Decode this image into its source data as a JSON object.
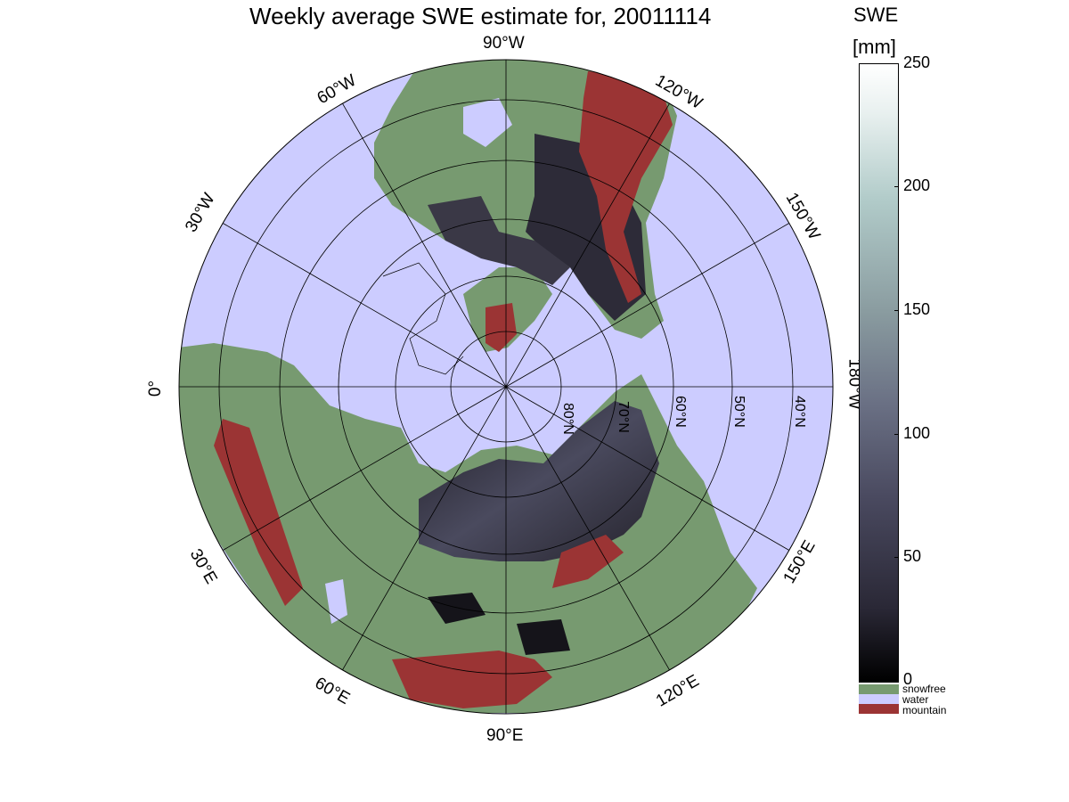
{
  "title": "Weekly average SWE estimate for, 20011114",
  "colorbar": {
    "title_line1": "SWE",
    "title_line2": "[mm]",
    "ticks": [
      "250",
      "200",
      "150",
      "100",
      "50",
      "0"
    ]
  },
  "legend": [
    {
      "label": "snowfree",
      "color": "#779a70"
    },
    {
      "label": "water",
      "color": "#ccccff"
    },
    {
      "label": "mountain",
      "color": "#9b3434"
    }
  ],
  "longitude_labels": {
    "top": "90°W",
    "bottom": "90°E",
    "left": "0°",
    "right": "180°W",
    "w60": "60°W",
    "w120": "120°W",
    "w30": "30°W",
    "w150": "150°W",
    "e30": "30°E",
    "e150": "150°E",
    "e60": "60°E",
    "e120": "120°E"
  },
  "latitude_labels": [
    "80°N",
    "70°N",
    "60°N",
    "50°N",
    "40°N"
  ],
  "colors": {
    "water": "#ccccff",
    "snowfree": "#779a70",
    "mountain": "#9b3434",
    "snow_dark": "#2d2b38"
  }
}
